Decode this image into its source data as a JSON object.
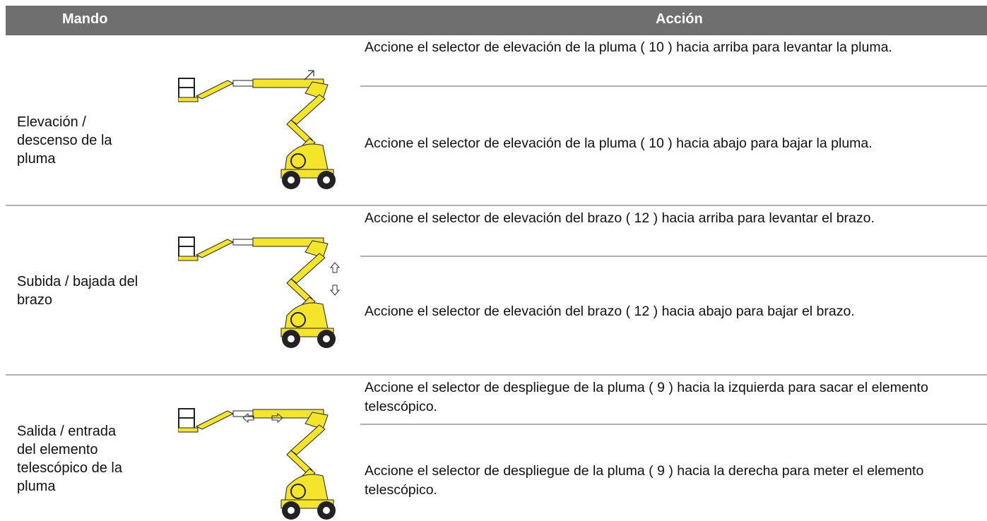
{
  "header": {
    "columns": [
      "Mando",
      "Acción"
    ]
  },
  "table": {
    "rows": [
      {
        "control": "Elevación / descenso de la pluma",
        "actions": [
          "Accione el selector de elevación de la pluma ( 10 ) hacia arriba para levantar la pluma.",
          "Accione el selector de elevación de la pluma ( 10 ) hacia abajo para bajar la pluma."
        ]
      },
      {
        "control": "Subida / bajada del brazo",
        "actions": [
          "Accione el selector de elevación del brazo ( 12 ) hacia arriba para levantar el brazo.",
          "Accione el selector de elevación del brazo ( 12 ) hacia abajo para bajar el brazo."
        ]
      },
      {
        "control": "Salida / entrada del elemento telescópico de la pluma",
        "actions": [
          "Accione el selector de despliegue de la pluma ( 9 ) hacia la izquierda para sacar el elemento telescópico.",
          "Accione el selector de despliegue de la pluma ( 9 ) hacia la derecha para meter el elemento telescópico."
        ]
      }
    ]
  }
}
